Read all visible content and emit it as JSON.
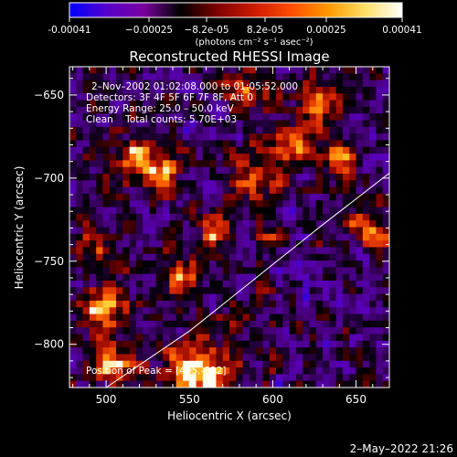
{
  "colorbar": {
    "ticks": [
      "-0.00041",
      "−0.00025",
      "−8.2e-05",
      "8.2e-05",
      "0.00025",
      "0.00041"
    ],
    "units": "(photons cm⁻² s⁻¹ asec⁻²)",
    "colors": [
      "#0000ff",
      "#5500cc",
      "#7a00a0",
      "#000000",
      "#800000",
      "#cc1a00",
      "#ff4d00",
      "#ff9900",
      "#ffe066",
      "#ffffff"
    ]
  },
  "chart_data": {
    "type": "heatmap",
    "title": "Reconstructed RHESSI Image",
    "xlabel": "Heliocentric X (arcsec)",
    "ylabel": "Heliocentric Y (arcsec)",
    "xlim": [
      478,
      670
    ],
    "ylim": [
      -826,
      -633
    ],
    "xticks": [
      500,
      550,
      600,
      650
    ],
    "yticks": [
      -650,
      -700,
      -750,
      -800
    ],
    "xtick_labels": [
      "500",
      "550",
      "600",
      "650"
    ],
    "ytick_labels": [
      "−650",
      "−700",
      "−750",
      "−800"
    ],
    "value_range": [
      -0.00041,
      0.00041
    ],
    "annotations": [
      "2–Nov–2002 01:02:08.000 to 01:05:52.000",
      "Detectors: 3F 4F 5F 6F 7F 8F, Att 0",
      "Energy Range: 25.0 – 50.0 keV",
      "Clean    Total counts: 5.70E+03"
    ],
    "peak_label": "Position of Peak = [495,-822]",
    "limb_curve": [
      [
        500,
        -826
      ],
      [
        550,
        -792
      ],
      [
        600,
        -752
      ],
      [
        630,
        -728
      ],
      [
        670,
        -697
      ]
    ]
  },
  "timestamp": "2–May–2022 21:26"
}
